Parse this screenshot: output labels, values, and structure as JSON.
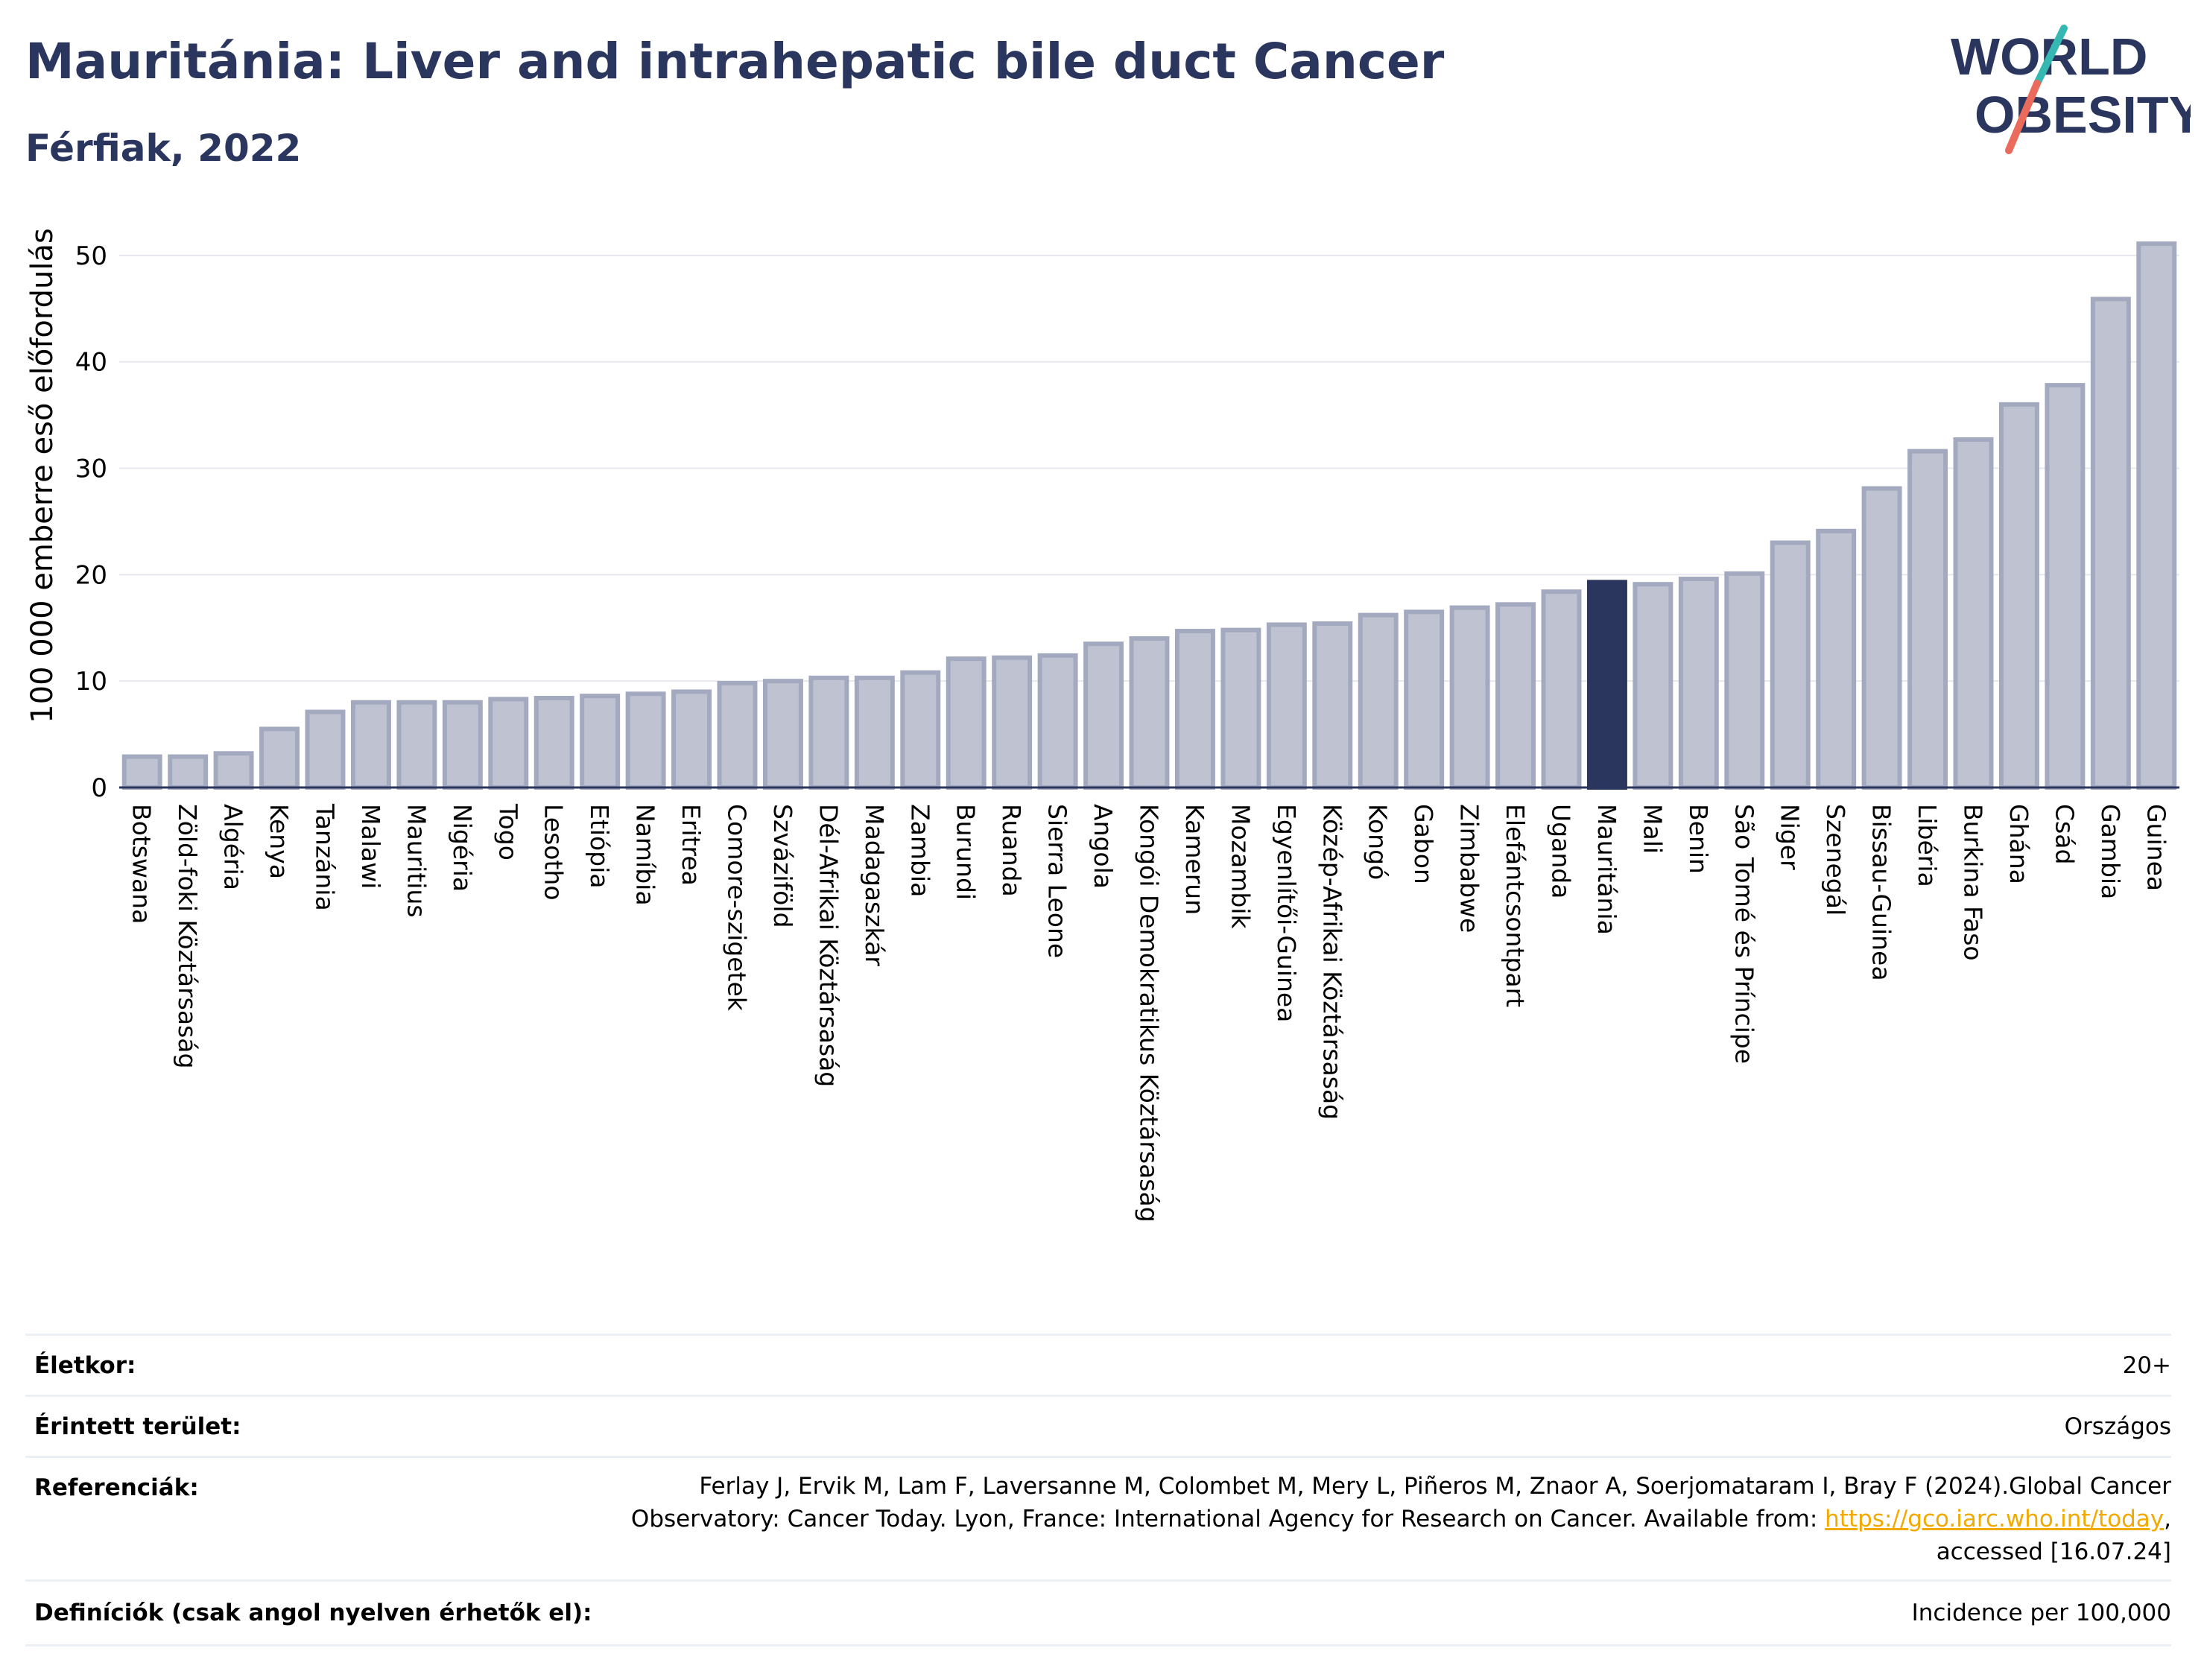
{
  "header": {
    "title": "Mauritánia: Liver and intrahepatic bile duct Cancer",
    "subtitle": "Férfiak, 2022"
  },
  "logo": {
    "line1": "WORLD",
    "line2": "OBESITY"
  },
  "chart_data": {
    "type": "bar",
    "title": "Mauritánia: Liver and intrahepatic bile duct Cancer",
    "subtitle": "Férfiak, 2022",
    "ylabel": "100 000 emberre eső előfordulás",
    "xlabel": "",
    "ylim": [
      0,
      53
    ],
    "yticks": [
      0,
      10,
      20,
      30,
      40,
      50
    ],
    "grid": true,
    "highlight": "Mauritánia",
    "colors": {
      "bar": "#bfc3d1",
      "bar_border": "#a3a9bf",
      "highlight": "#2b365f",
      "grid": "#e6e8ee",
      "axis": "#2b365f"
    },
    "categories": [
      "Botswana",
      "Zöld-foki Köztársaság",
      "Algéria",
      "Kenya",
      "Tanzánia",
      "Malawi",
      "Mauritius",
      "Nigéria",
      "Togo",
      "Lesotho",
      "Etiópia",
      "Namíbia",
      "Eritrea",
      "Comore-szigetek",
      "Szváziföld",
      "Dél-Afrikai Köztársaság",
      "Madagaszkár",
      "Zambia",
      "Burundi",
      "Ruanda",
      "Sierra Leone",
      "Angola",
      "Kongói Demokratikus Köztársaság",
      "Kamerun",
      "Mozambik",
      "Egyenlítői-Guinea",
      "Közép-Afrikai Köztársaság",
      "Kongó",
      "Gabon",
      "Zimbabwe",
      "Elefántcsontpart",
      "Uganda",
      "Mauritánia",
      "Mali",
      "Benin",
      "São Tomé és Príncipe",
      "Niger",
      "Szenegál",
      "Bissau-Guinea",
      "Libéria",
      "Burkina Faso",
      "Ghána",
      "Csád",
      "Gambia",
      "Guinea"
    ],
    "values": [
      2.9,
      2.9,
      3.2,
      5.5,
      7.1,
      8.0,
      8.0,
      8.0,
      8.3,
      8.4,
      8.6,
      8.8,
      9.0,
      9.8,
      10.0,
      10.3,
      10.3,
      10.8,
      12.1,
      12.2,
      12.4,
      13.5,
      14.0,
      14.7,
      14.8,
      15.3,
      15.4,
      16.2,
      16.5,
      16.9,
      17.2,
      18.4,
      19.3,
      19.1,
      19.6,
      20.1,
      23.0,
      24.1,
      28.1,
      31.6,
      32.7,
      36.0,
      37.8,
      45.9,
      51.1
    ]
  },
  "meta": {
    "age_label": "Életkor:",
    "age_value": "20+",
    "area_label": "Érintett terület:",
    "area_value": "Országos",
    "ref_label": "Referenciák:",
    "ref_line1": "Ferlay J, Ervik M, Lam F, Laversanne M, Colombet M, Mery L, Piñeros M, Znaor A, Soerjomataram I, Bray F (2024).Global Cancer",
    "ref_line2": "Observatory: Cancer Today. Lyon, France: International Agency for Research on Cancer. Available from: ",
    "ref_link": "https://gco.iarc.who.int/today",
    "ref_line2_end": ",",
    "ref_line3": "accessed [16.07.24]",
    "def_label": "Definíciók (csak angol nyelven érhetők el):",
    "def_value": "Incidence per 100,000"
  }
}
